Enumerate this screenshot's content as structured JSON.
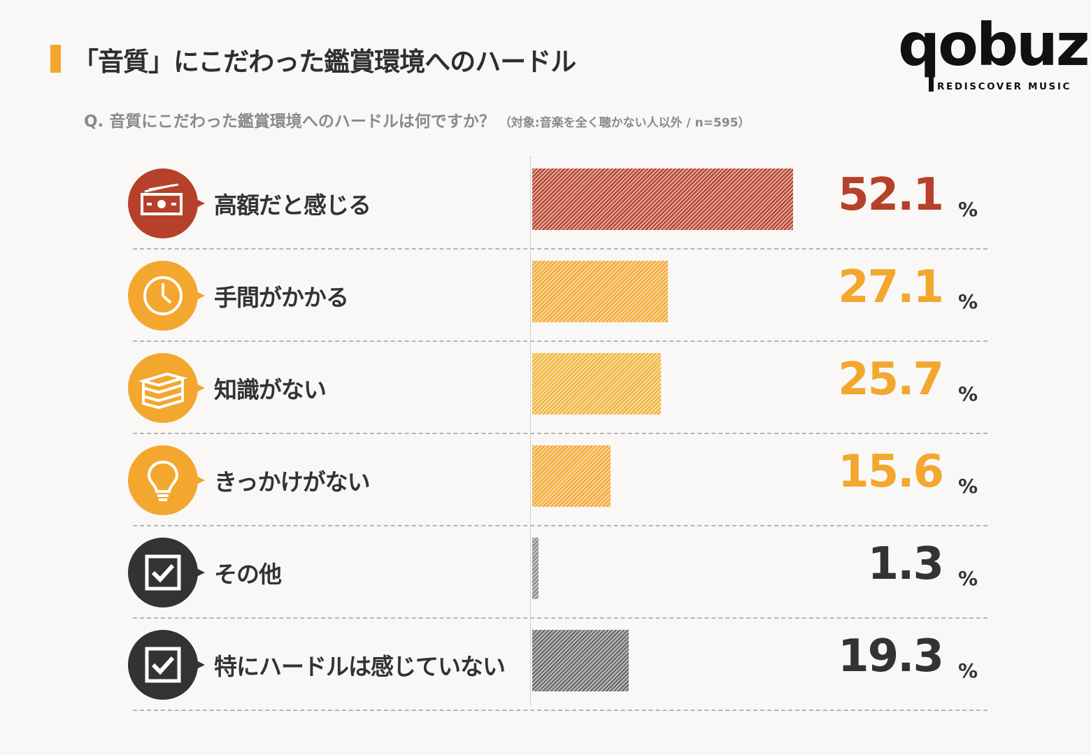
{
  "header": {
    "title": "「音質」にこだわった鑑賞環境へのハードル",
    "question": "Q.  音質にこだわった鑑賞環境へのハードルは何ですか？",
    "target": "（対象:音楽を全く聴かない人以外 / n=595）"
  },
  "logo": {
    "wordmark": "qobuz",
    "tagline": "REDISCOVER MUSIC"
  },
  "colors": {
    "accent": "#f3a72f",
    "red": "#b6402a",
    "dark": "#333333"
  },
  "chart_data": {
    "type": "bar",
    "orientation": "horizontal",
    "unit": "%",
    "categories": [
      "高額だと感じる",
      "手間がかかる",
      "知識がない",
      "きっかけがない",
      "その他",
      "特にハードルは感じていない"
    ],
    "values": [
      52.1,
      27.1,
      25.7,
      15.6,
      1.3,
      19.3
    ],
    "value_labels": [
      "52.1",
      "27.1",
      "25.7",
      "15.6",
      "1.3",
      "19.3"
    ],
    "bar_colors": [
      "#b6402a",
      "#f3a72f",
      "#efb336",
      "#f3a72f",
      "#888888",
      "#666666"
    ],
    "value_colors": [
      "#b6402a",
      "#f3a72f",
      "#f3a72f",
      "#f3a72f",
      "#333333",
      "#333333"
    ],
    "icons": [
      "money-icon",
      "clock-icon",
      "books-icon",
      "lightbulb-icon",
      "checkbox-icon",
      "checkbox-icon"
    ],
    "icon_bg_colors": [
      "#b6402a",
      "#f3a72f",
      "#f3a72f",
      "#f3a72f",
      "#333333",
      "#333333"
    ]
  }
}
